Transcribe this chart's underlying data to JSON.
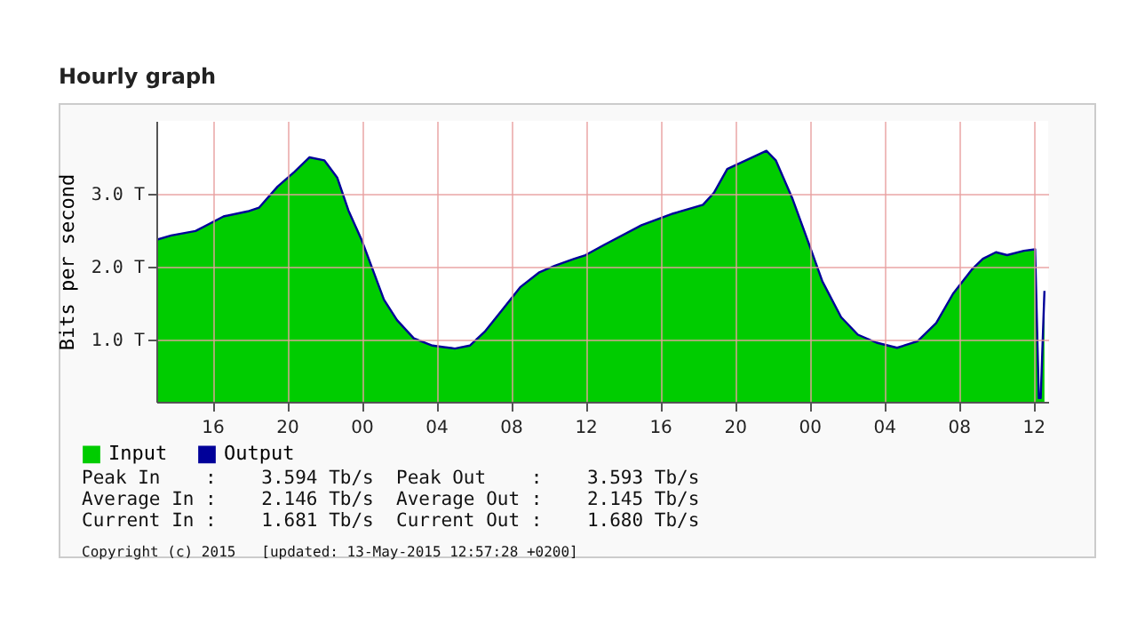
{
  "chart_data": {
    "type": "area",
    "title": "Hourly graph",
    "ylabel": "Bits per second",
    "x": [
      13.0,
      13.8,
      15.1,
      16.6,
      17.9,
      18.5,
      19.5,
      20.4,
      21.2,
      22.0,
      22.7,
      23.3,
      24.0,
      24.6,
      25.2,
      25.9,
      26.8,
      27.8,
      28.4,
      29.0,
      29.8,
      30.6,
      31.6,
      32.5,
      33.5,
      34.4,
      35.4,
      36.0,
      37.0,
      39.0,
      40.7,
      42.3,
      42.9,
      43.6,
      44.6,
      45.7,
      46.2,
      47.1,
      47.9,
      48.7,
      49.7,
      50.6,
      51.6,
      52.7,
      53.8,
      54.8,
      55.7,
      56.7,
      57.3,
      58.0,
      58.6,
      59.5,
      60.1,
      60.3,
      60.4,
      60.6
    ],
    "series": [
      {
        "name": "Input",
        "type": "area",
        "color": "#00cc00",
        "values": [
          2.37,
          2.43,
          2.49,
          2.69,
          2.76,
          2.81,
          3.1,
          3.3,
          3.5,
          3.46,
          3.22,
          2.77,
          2.37,
          1.96,
          1.55,
          1.27,
          1.02,
          0.92,
          0.9,
          0.88,
          0.92,
          1.11,
          1.43,
          1.72,
          1.92,
          2.02,
          2.11,
          2.16,
          2.3,
          2.57,
          2.73,
          2.85,
          3.02,
          3.34,
          3.46,
          3.59,
          3.46,
          2.93,
          2.37,
          1.8,
          1.31,
          1.07,
          0.96,
          0.89,
          0.98,
          1.23,
          1.63,
          1.96,
          2.11,
          2.2,
          2.16,
          2.22,
          2.24,
          0.2,
          0.2,
          1.67
        ]
      },
      {
        "name": "Output",
        "type": "line",
        "color": "#000099",
        "values": [
          2.37,
          2.43,
          2.49,
          2.69,
          2.76,
          2.81,
          3.1,
          3.3,
          3.5,
          3.46,
          3.22,
          2.77,
          2.37,
          1.96,
          1.55,
          1.27,
          1.02,
          0.92,
          0.9,
          0.88,
          0.92,
          1.11,
          1.43,
          1.72,
          1.92,
          2.02,
          2.11,
          2.16,
          2.3,
          2.57,
          2.73,
          2.85,
          3.02,
          3.34,
          3.46,
          3.59,
          3.46,
          2.93,
          2.37,
          1.8,
          1.31,
          1.07,
          0.96,
          0.89,
          0.98,
          1.23,
          1.63,
          1.96,
          2.11,
          2.2,
          2.16,
          2.22,
          2.24,
          0.2,
          0.2,
          1.67
        ]
      }
    ],
    "xlim": [
      13,
      60.8
    ],
    "xticks": [
      {
        "value": 16,
        "label": "16"
      },
      {
        "value": 20,
        "label": "20"
      },
      {
        "value": 24,
        "label": "00"
      },
      {
        "value": 28,
        "label": "04"
      },
      {
        "value": 32,
        "label": "08"
      },
      {
        "value": 36,
        "label": "12"
      },
      {
        "value": 40,
        "label": "16"
      },
      {
        "value": 44,
        "label": "20"
      },
      {
        "value": 48,
        "label": "00"
      },
      {
        "value": 52,
        "label": "04"
      },
      {
        "value": 56,
        "label": "08"
      },
      {
        "value": 60,
        "label": "12"
      }
    ],
    "ylim": [
      0.15,
      4
    ],
    "yticks": [
      {
        "value": 1,
        "label": "1.0 T"
      },
      {
        "value": 2,
        "label": "2.0 T"
      },
      {
        "value": 3,
        "label": "3.0 T"
      }
    ],
    "grid": true,
    "legend": "bottom left",
    "annotations": [
      "Peak In    :    3.594 Tb/s  Peak Out    :    3.593 Tb/s",
      "Average In :    2.146 Tb/s  Average Out :    2.145 Tb/s",
      "Current In :    1.681 Tb/s  Current Out :    1.680 Tb/s",
      "Copyright (c) 2015   [updated: 13-May-2015 12:57:28 +0200]"
    ]
  }
}
